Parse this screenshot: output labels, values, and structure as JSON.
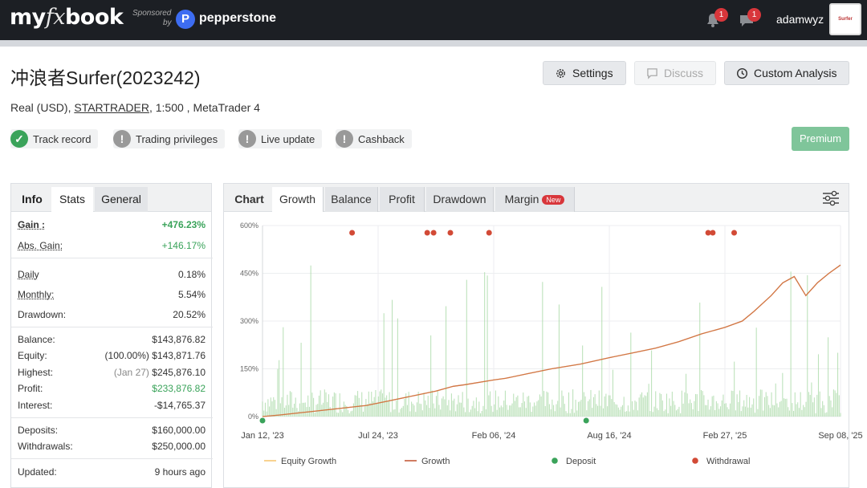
{
  "topbar": {
    "logo_my": "my",
    "logo_fx": "fx",
    "logo_book": "book",
    "sponsored": "Sponsored",
    "by": "by",
    "sponsor_mark": "P",
    "sponsor_name": "pepperstone",
    "notifications_count": "1",
    "messages_count": "1",
    "username": "adamwyz",
    "avatar_text": "Surfer"
  },
  "account": {
    "title": "冲浪者Surfer(2023242)",
    "type": "Real (USD), ",
    "broker": "STARTRADER",
    "details": ", 1:500 , MetaTrader 4"
  },
  "actions": {
    "settings": "Settings",
    "discuss": "Discuss",
    "custom_analysis": "Custom Analysis",
    "premium": "Premium"
  },
  "badges": [
    {
      "label": "Track record",
      "icon": "check-icon",
      "status": "ok"
    },
    {
      "label": "Trading privileges",
      "icon": "exclamation-icon",
      "status": "warn"
    },
    {
      "label": "Live update",
      "icon": "exclamation-icon",
      "status": "warn"
    },
    {
      "label": "Cashback",
      "icon": "exclamation-icon",
      "status": "warn"
    }
  ],
  "left_tabs": [
    "Info",
    "Stats",
    "General"
  ],
  "stats": {
    "gain_label": "Gain :",
    "gain": "+476.23%",
    "abs_gain_label": "Abs. Gain:",
    "abs_gain": "+146.17%",
    "daily_label": "Daily",
    "daily": "0.18%",
    "monthly_label": "Monthly:",
    "monthly": "5.54%",
    "drawdown_label": "Drawdown:",
    "drawdown": "20.52%",
    "balance_label": "Balance:",
    "balance": "$143,876.82",
    "equity_label": "Equity:",
    "equity_pct": "(100.00%)",
    "equity": "$143,871.76",
    "highest_label": "Highest:",
    "highest_date": "(Jan 27)",
    "highest": "$245,876.10",
    "profit_label": "Profit:",
    "profit": "$233,876.82",
    "interest_label": "Interest:",
    "interest": "-$14,765.37",
    "deposits_label": "Deposits:",
    "deposits": "$160,000.00",
    "withdrawals_label": "Withdrawals:",
    "withdrawals": "$250,000.00",
    "updated_label": "Updated:",
    "updated": "9 hours ago"
  },
  "chart_tabs": {
    "chart": "Chart",
    "growth": "Growth",
    "balance": "Balance",
    "profit": "Profit",
    "drawdown": "Drawdown",
    "margin": "Margin",
    "new": "New"
  },
  "colors": {
    "equity": "#f5c26b",
    "growth": "#c0502e",
    "deposit": "#3aa35a",
    "withdrawal": "#d24a36",
    "bars": "#a8d9a5"
  },
  "chart_data": {
    "type": "line",
    "y_ticks": [
      "600%",
      "450%",
      "300%",
      "150%",
      "0%"
    ],
    "ylim": [
      0,
      600
    ],
    "x_ticks": [
      "Jan 12, '23",
      "Jul 24, '23",
      "Feb 06, '24",
      "Aug 16, '24",
      "Feb 27, '25",
      "Sep 08, '25"
    ],
    "legend": [
      "Equity Growth",
      "Growth",
      "Deposit",
      "Withdrawal"
    ],
    "series": [
      {
        "name": "Growth",
        "x": [
          0,
          0.03,
          0.08,
          0.13,
          0.18,
          0.22,
          0.26,
          0.3,
          0.33,
          0.35,
          0.4,
          0.42,
          0.46,
          0.5,
          0.55,
          0.6,
          0.64,
          0.68,
          0.72,
          0.76,
          0.8,
          0.83,
          0.85,
          0.88,
          0.9,
          0.92,
          0.94,
          0.96,
          0.98,
          1
        ],
        "values": [
          0,
          5,
          15,
          25,
          35,
          50,
          65,
          80,
          95,
          100,
          115,
          120,
          135,
          150,
          165,
          185,
          200,
          215,
          235,
          260,
          280,
          300,
          330,
          380,
          420,
          440,
          380,
          420,
          450,
          476
        ]
      }
    ],
    "deposits_x": [
      0,
      0.56
    ],
    "withdrawals_x": [
      0.155,
      0.285,
      0.296,
      0.325,
      0.392,
      0.771,
      0.779,
      0.816
    ]
  }
}
